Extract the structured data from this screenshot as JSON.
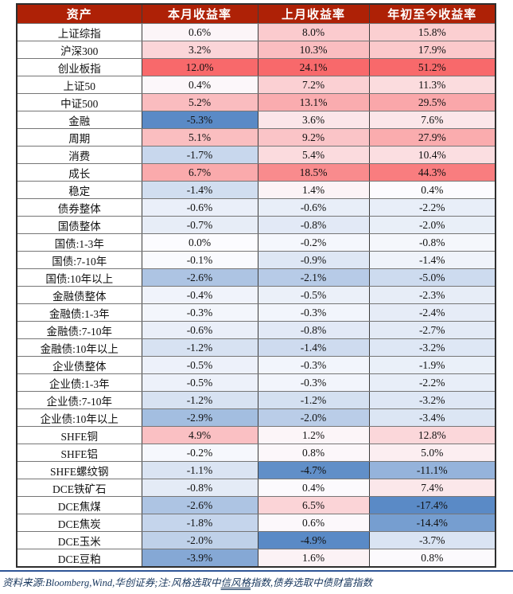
{
  "chart_data": {
    "type": "table",
    "columns": [
      "资产",
      "本月收益率",
      "上月收益率",
      "年初至今收益率"
    ],
    "rows": [
      {
        "label": "上证综指",
        "values": [
          0.6,
          8.0,
          15.8
        ]
      },
      {
        "label": "沪深300",
        "values": [
          3.2,
          10.3,
          17.9
        ]
      },
      {
        "label": "创业板指",
        "values": [
          12.0,
          24.1,
          51.2
        ]
      },
      {
        "label": "上证50",
        "values": [
          0.4,
          7.2,
          11.3
        ]
      },
      {
        "label": "中证500",
        "values": [
          5.2,
          13.1,
          29.5
        ]
      },
      {
        "label": "金融",
        "values": [
          -5.3,
          3.6,
          7.6
        ]
      },
      {
        "label": "周期",
        "values": [
          5.1,
          9.2,
          27.9
        ]
      },
      {
        "label": "消费",
        "values": [
          -1.7,
          5.4,
          10.4
        ]
      },
      {
        "label": "成长",
        "values": [
          6.7,
          18.5,
          44.3
        ]
      },
      {
        "label": "稳定",
        "values": [
          -1.4,
          1.4,
          0.4
        ]
      },
      {
        "label": "债券整体",
        "values": [
          -0.6,
          -0.6,
          -2.2
        ]
      },
      {
        "label": "国债整体",
        "values": [
          -0.7,
          -0.8,
          -2.0
        ]
      },
      {
        "label": "国债:1-3年",
        "values": [
          0.0,
          -0.2,
          -0.8
        ]
      },
      {
        "label": "国债:7-10年",
        "values": [
          -0.1,
          -0.9,
          -1.4
        ]
      },
      {
        "label": "国债:10年以上",
        "values": [
          -2.6,
          -2.1,
          -5.0
        ]
      },
      {
        "label": "金融债整体",
        "values": [
          -0.4,
          -0.5,
          -2.3
        ]
      },
      {
        "label": "金融债:1-3年",
        "values": [
          -0.3,
          -0.3,
          -2.4
        ]
      },
      {
        "label": "金融债:7-10年",
        "values": [
          -0.6,
          -0.8,
          -2.7
        ]
      },
      {
        "label": "金融债:10年以上",
        "values": [
          -1.2,
          -1.4,
          -3.2
        ]
      },
      {
        "label": "企业债整体",
        "values": [
          -0.5,
          -0.3,
          -1.9
        ]
      },
      {
        "label": "企业债:1-3年",
        "values": [
          -0.5,
          -0.3,
          -2.2
        ]
      },
      {
        "label": "企业债:7-10年",
        "values": [
          -1.2,
          -1.2,
          -3.2
        ]
      },
      {
        "label": "企业债:10年以上",
        "values": [
          -2.9,
          -2.0,
          -3.4
        ]
      },
      {
        "label": "SHFE铜",
        "values": [
          4.9,
          1.2,
          12.8
        ]
      },
      {
        "label": "SHFE铝",
        "values": [
          -0.2,
          0.8,
          5.0
        ]
      },
      {
        "label": "SHFE螺纹钢",
        "values": [
          -1.1,
          -4.7,
          -11.1
        ]
      },
      {
        "label": "DCE铁矿石",
        "values": [
          -0.8,
          0.4,
          7.4
        ]
      },
      {
        "label": "DCE焦煤",
        "values": [
          -2.6,
          6.5,
          -17.4
        ]
      },
      {
        "label": "DCE焦炭",
        "values": [
          -1.8,
          0.6,
          -14.4
        ]
      },
      {
        "label": "DCE玉米",
        "values": [
          -2.0,
          -4.9,
          -3.7
        ]
      },
      {
        "label": "DCE豆粕",
        "values": [
          -3.9,
          1.6,
          0.8
        ]
      }
    ],
    "value_suffix": "%",
    "value_decimals": 1,
    "heatmap": {
      "low": "#5A8AC6",
      "mid": "#FCFCFF",
      "high": "#F8696B",
      "midpoint": 0,
      "scope": "per-column"
    },
    "layout": {
      "grid": true,
      "header_bg": "#AE2106",
      "header_text": "#FFFFFF",
      "label_col_bg": "#FFFFFF"
    }
  },
  "footnote": {
    "pre": "资料来源:Bloomberg,Wind,华创证券;注:风格选取中",
    "underlined": "信风格",
    "post": "指数,债券选取中债财富指数",
    "color": "#17365D"
  },
  "divider_color": "#2F5597"
}
